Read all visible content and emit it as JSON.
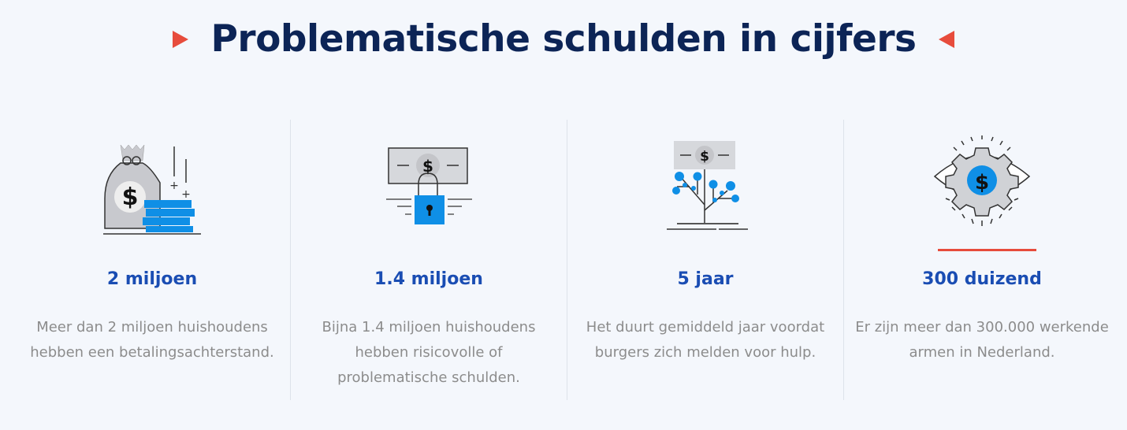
{
  "header": {
    "title": "Problematische schulden in cijfers"
  },
  "colors": {
    "title": "#0c2456",
    "accent": "#e74c3c",
    "stat": "#1a4db3",
    "icon_blue": "#0f8fe6"
  },
  "stats": [
    {
      "icon": "money-bag-coins-icon",
      "value": "2 miljoen",
      "description": "Meer dan 2 miljoen huishoudens hebben een betalingsachterstand."
    },
    {
      "icon": "locked-banknote-icon",
      "value": "1.4 miljoen",
      "description": "Bijna 1.4 miljoen huishoudens hebben risicovolle of problematische schulden."
    },
    {
      "icon": "money-tree-icon",
      "value": "5 jaar",
      "description": "Het duurt gemiddeld jaar voordat burgers zich melden voor hulp."
    },
    {
      "icon": "eye-gear-dollar-icon",
      "value": "300 duizend",
      "description": "Er zijn meer dan 300.000 werkende armen in Nederland."
    }
  ]
}
